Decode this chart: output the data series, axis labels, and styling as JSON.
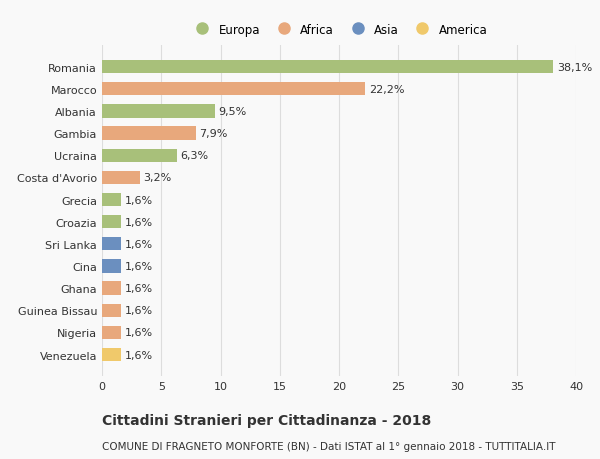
{
  "countries": [
    "Romania",
    "Marocco",
    "Albania",
    "Gambia",
    "Ucraina",
    "Costa d'Avorio",
    "Grecia",
    "Croazia",
    "Sri Lanka",
    "Cina",
    "Ghana",
    "Guinea Bissau",
    "Nigeria",
    "Venezuela"
  ],
  "values": [
    38.1,
    22.2,
    9.5,
    7.9,
    6.3,
    3.2,
    1.6,
    1.6,
    1.6,
    1.6,
    1.6,
    1.6,
    1.6,
    1.6
  ],
  "labels": [
    "38,1%",
    "22,2%",
    "9,5%",
    "7,9%",
    "6,3%",
    "3,2%",
    "1,6%",
    "1,6%",
    "1,6%",
    "1,6%",
    "1,6%",
    "1,6%",
    "1,6%",
    "1,6%"
  ],
  "continents": [
    "Europa",
    "Africa",
    "Europa",
    "Africa",
    "Europa",
    "Africa",
    "Europa",
    "Europa",
    "Asia",
    "Asia",
    "Africa",
    "Africa",
    "Africa",
    "America"
  ],
  "continent_colors": {
    "Europa": "#a8c07a",
    "Africa": "#e8a87c",
    "Asia": "#6b8fbf",
    "America": "#f0c96b"
  },
  "legend_order": [
    "Europa",
    "Africa",
    "Asia",
    "America"
  ],
  "xlim": [
    0,
    40
  ],
  "xticks": [
    0,
    5,
    10,
    15,
    20,
    25,
    30,
    35,
    40
  ],
  "title": "Cittadini Stranieri per Cittadinanza - 2018",
  "subtitle": "COMUNE DI FRAGNETO MONFORTE (BN) - Dati ISTAT al 1° gennaio 2018 - TUTTITALIA.IT",
  "background_color": "#f9f9f9",
  "bar_height": 0.6,
  "grid_color": "#dddddd",
  "text_color": "#333333",
  "title_fontsize": 10,
  "subtitle_fontsize": 7.5,
  "tick_fontsize": 8,
  "label_fontsize": 8,
  "legend_fontsize": 8.5
}
